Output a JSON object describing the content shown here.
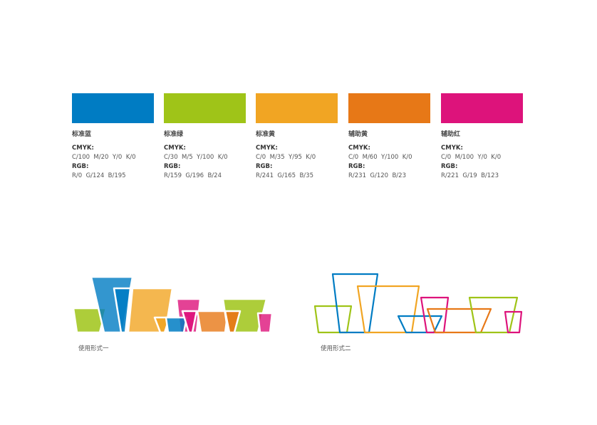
{
  "colors": [
    {
      "name": "标准蓝",
      "cmyk_label": "CMYK:",
      "cmyk": "C/100  M/20  Y/0  K/0",
      "rgb_label": "RGB:",
      "rgb": "R/0  G/124  B/195",
      "hex": "#007CC3"
    },
    {
      "name": "标准绿",
      "cmyk_label": "CMYK:",
      "cmyk": "C/30  M/5  Y/100  K/0",
      "rgb_label": "RGB:",
      "rgb": "R/159  G/196  B/24",
      "hex": "#9FC418"
    },
    {
      "name": "标准黄",
      "cmyk_label": "CMYK:",
      "cmyk": "C/0  M/35  Y/95  K/0",
      "rgb_label": "RGB:",
      "rgb": "R/241  G/165  B/35",
      "hex": "#F1A523"
    },
    {
      "name": "辅助黄",
      "cmyk_label": "CMYK:",
      "cmyk": "C/0  M/60  Y/100  K/0",
      "rgb_label": "RGB:",
      "rgb": "R/231  G/120  B/23",
      "hex": "#E77817"
    },
    {
      "name": "辅助红",
      "cmyk_label": "CMYK:",
      "cmyk": "C/0  M/100  Y/0  K/0",
      "rgb_label": "RGB:",
      "rgb": "R/221  G/19  B/123",
      "hex": "#DD137B"
    }
  ],
  "usage": [
    {
      "caption": "使用形式一",
      "style": "filled"
    },
    {
      "caption": "使用形式二",
      "style": "outline"
    }
  ]
}
